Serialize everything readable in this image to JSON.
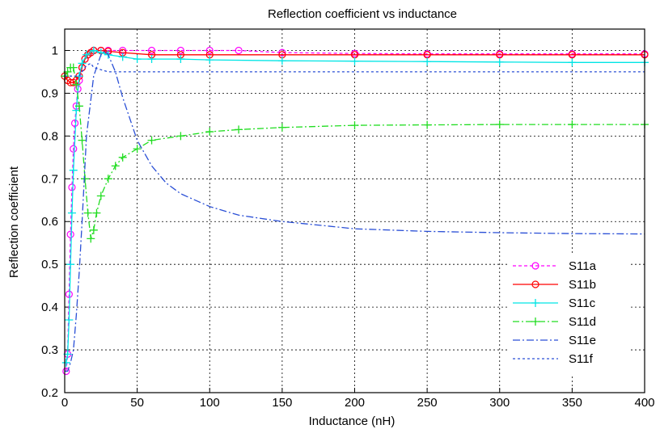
{
  "chart_data": {
    "type": "line",
    "title": "Reflection coefficient vs inductance",
    "xlabel": "Inductance (nH)",
    "ylabel": "Reflection coefficient",
    "xlim": [
      0,
      400
    ],
    "ylim": [
      0.2,
      1.05
    ],
    "xticks": [
      0,
      50,
      100,
      150,
      200,
      250,
      300,
      350,
      400
    ],
    "yticks": [
      0.2,
      0.3,
      0.4,
      0.5,
      0.6,
      0.7,
      0.8,
      0.9,
      1.0
    ],
    "xtick_labels": [
      "0",
      "50",
      "100",
      "150",
      "200",
      "250",
      "300",
      "350",
      "400"
    ],
    "ytick_labels": [
      "0.2",
      "0.3",
      "0.4",
      "0.5",
      "0.6",
      "0.7",
      "0.8",
      "0.9",
      "1"
    ],
    "grid": true,
    "legend_position": "lower-right",
    "series": [
      {
        "name": "S11a",
        "color": "#ff00ff",
        "dash": "4,3",
        "marker": "circle",
        "x": [
          1,
          2,
          3,
          4,
          5,
          6,
          7,
          8,
          9,
          10,
          12,
          14,
          16,
          18,
          20,
          25,
          30,
          40,
          60,
          80,
          100,
          120,
          150,
          200,
          250,
          300,
          350,
          400
        ],
        "y": [
          0.25,
          0.29,
          0.43,
          0.57,
          0.68,
          0.77,
          0.83,
          0.87,
          0.91,
          0.93,
          0.96,
          0.98,
          0.99,
          0.995,
          1.0,
          1.0,
          1.0,
          1.0,
          1.0,
          1.0,
          1.0,
          1.0,
          0.995,
          0.993,
          0.992,
          0.992,
          0.992,
          0.992
        ]
      },
      {
        "name": "S11b",
        "color": "#ff0000",
        "dash": "",
        "marker": "circle",
        "x": [
          0,
          2,
          4,
          6,
          8,
          10,
          12,
          14,
          16,
          18,
          20,
          25,
          30,
          40,
          60,
          80,
          100,
          150,
          200,
          250,
          300,
          350,
          400
        ],
        "y": [
          0.94,
          0.93,
          0.925,
          0.925,
          0.93,
          0.94,
          0.96,
          0.98,
          0.99,
          0.995,
          1.0,
          1.0,
          0.998,
          0.995,
          0.99,
          0.99,
          0.99,
          0.99,
          0.99,
          0.99,
          0.99,
          0.99,
          0.99
        ]
      },
      {
        "name": "S11c",
        "color": "#00e5e5",
        "dash": "",
        "marker": "plus",
        "x": [
          1,
          2,
          3,
          4,
          5,
          6,
          8,
          10,
          12,
          15,
          20,
          25,
          30,
          40,
          50,
          60,
          80,
          100,
          150,
          200,
          250,
          300,
          350,
          400
        ],
        "y": [
          0.27,
          0.29,
          0.37,
          0.5,
          0.62,
          0.72,
          0.86,
          0.94,
          0.97,
          0.99,
          1.0,
          0.995,
          0.99,
          0.985,
          0.98,
          0.98,
          0.98,
          0.978,
          0.976,
          0.975,
          0.974,
          0.973,
          0.972,
          0.972
        ]
      },
      {
        "name": "S11d",
        "color": "#22dd22",
        "dash": "8,3,2,3",
        "marker": "plus",
        "x": [
          0,
          2,
          4,
          6,
          8,
          10,
          12,
          14,
          16,
          18,
          20,
          22,
          25,
          30,
          35,
          40,
          50,
          60,
          80,
          100,
          120,
          150,
          200,
          250,
          300,
          350,
          400
        ],
        "y": [
          0.94,
          0.95,
          0.96,
          0.96,
          0.92,
          0.87,
          0.79,
          0.7,
          0.62,
          0.56,
          0.58,
          0.62,
          0.66,
          0.7,
          0.73,
          0.75,
          0.77,
          0.79,
          0.8,
          0.81,
          0.815,
          0.82,
          0.825,
          0.826,
          0.827,
          0.827,
          0.827
        ]
      },
      {
        "name": "S11e",
        "color": "#2a4fd6",
        "dash": "9,3,2,3",
        "marker": "none",
        "x": [
          0,
          2,
          4,
          6,
          8,
          10,
          12,
          15,
          20,
          25,
          28,
          30,
          35,
          40,
          50,
          60,
          70,
          80,
          100,
          120,
          150,
          180,
          200,
          250,
          300,
          350,
          400
        ],
        "y": [
          0.25,
          0.25,
          0.27,
          0.3,
          0.38,
          0.48,
          0.6,
          0.8,
          0.94,
          0.99,
          1.0,
          0.99,
          0.95,
          0.89,
          0.79,
          0.73,
          0.69,
          0.665,
          0.635,
          0.615,
          0.6,
          0.59,
          0.583,
          0.577,
          0.574,
          0.572,
          0.571
        ]
      },
      {
        "name": "S11f",
        "color": "#2a4fd6",
        "dash": "3,3",
        "marker": "none",
        "x": [
          0,
          5,
          10,
          12,
          15,
          18,
          20,
          25,
          30,
          50,
          100,
          200,
          300,
          400
        ],
        "y": [
          0.94,
          0.94,
          0.94,
          0.95,
          0.965,
          0.97,
          0.96,
          0.955,
          0.95,
          0.95,
          0.95,
          0.95,
          0.95,
          0.95
        ]
      }
    ]
  }
}
